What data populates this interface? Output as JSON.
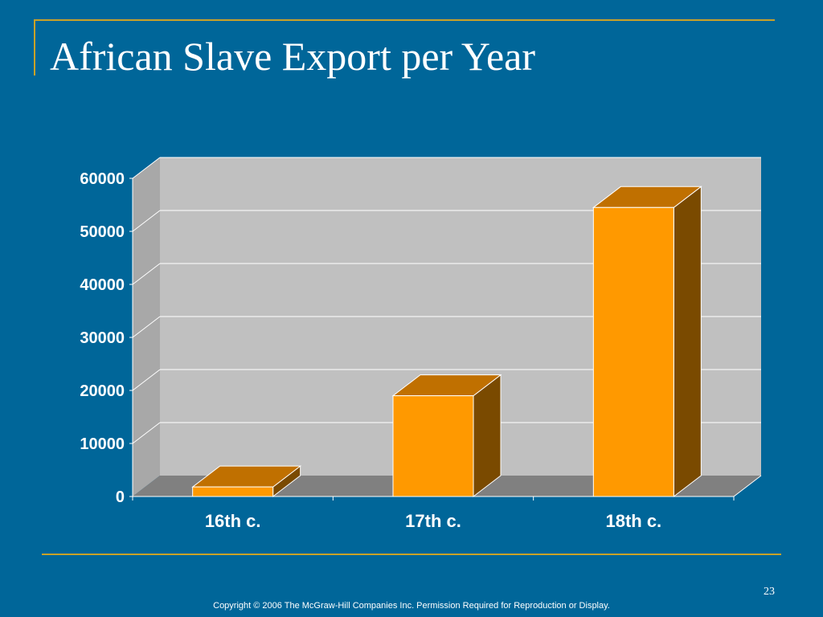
{
  "slide": {
    "title": "African Slave Export per Year",
    "page_number": "23",
    "copyright": "Copyright © 2006 The McGraw-Hill Companies Inc. Permission Required for Reproduction or Display."
  },
  "colors": {
    "background": "#006699",
    "accent_line": "#c9a227",
    "bar_front": "#ff9900",
    "bar_top": "#c07000",
    "bar_side": "#7a4a00",
    "plot_wall": "#c0c0c0",
    "plot_floor": "#808080"
  },
  "chart_data": {
    "type": "bar",
    "style": "3d",
    "title": "",
    "xlabel": "",
    "ylabel": "",
    "categories": [
      "16th c.",
      "17th c.",
      "18th c."
    ],
    "values": [
      1800,
      19000,
      54500
    ],
    "ylim": [
      0,
      60000
    ],
    "yticks": [
      "0",
      "10000",
      "20000",
      "30000",
      "40000",
      "50000",
      "60000"
    ],
    "grid": true,
    "legend": "none"
  }
}
